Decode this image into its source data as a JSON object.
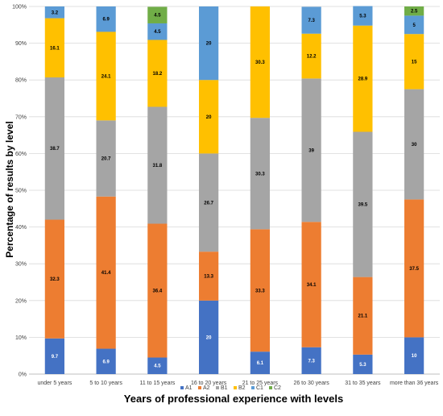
{
  "chart_data": {
    "type": "bar",
    "stacked": true,
    "title": "",
    "xlabel": "Years of professional experience with levels",
    "ylabel": "Percentage of results by level",
    "ylim": [
      0,
      100
    ],
    "ytick_labels": [
      "0%",
      "10%",
      "20%",
      "30%",
      "40%",
      "50%",
      "60%",
      "70%",
      "80%",
      "90%",
      "100%"
    ],
    "grid": "horizontal",
    "legend_position": "bottom",
    "categories": [
      "under 5 years",
      "5 to 10 years",
      "11 to 15 years",
      "16 to 20 years",
      "21 to 25 years",
      "26 to 30 years",
      "31 to 35 years",
      "more than 36 years"
    ],
    "series": [
      {
        "name": "A1",
        "color": "#4472C4",
        "label_color": "#ffffff",
        "values": [
          9.7,
          6.9,
          4.5,
          20,
          6.1,
          7.3,
          5.3,
          10
        ]
      },
      {
        "name": "A2",
        "color": "#ED7D31",
        "label_color": "#000000",
        "values": [
          32.3,
          41.4,
          36.4,
          13.3,
          33.3,
          34.1,
          21.1,
          37.5
        ]
      },
      {
        "name": "B1",
        "color": "#A5A5A5",
        "label_color": "#000000",
        "values": [
          38.7,
          20.7,
          31.8,
          26.7,
          30.3,
          39,
          39.5,
          30
        ]
      },
      {
        "name": "B2",
        "color": "#FFC000",
        "label_color": "#000000",
        "values": [
          16.1,
          24.1,
          18.2,
          20,
          30.3,
          12.2,
          28.9,
          15
        ]
      },
      {
        "name": "C1",
        "color": "#5B9BD5",
        "label_color": "#000000",
        "values": [
          3.2,
          6.9,
          4.5,
          20,
          0,
          7.3,
          5.3,
          5
        ]
      },
      {
        "name": "C2",
        "color": "#70AD47",
        "label_color": "#000000",
        "values": [
          0,
          0,
          4.5,
          0,
          0,
          0,
          0,
          2.5
        ]
      }
    ]
  }
}
